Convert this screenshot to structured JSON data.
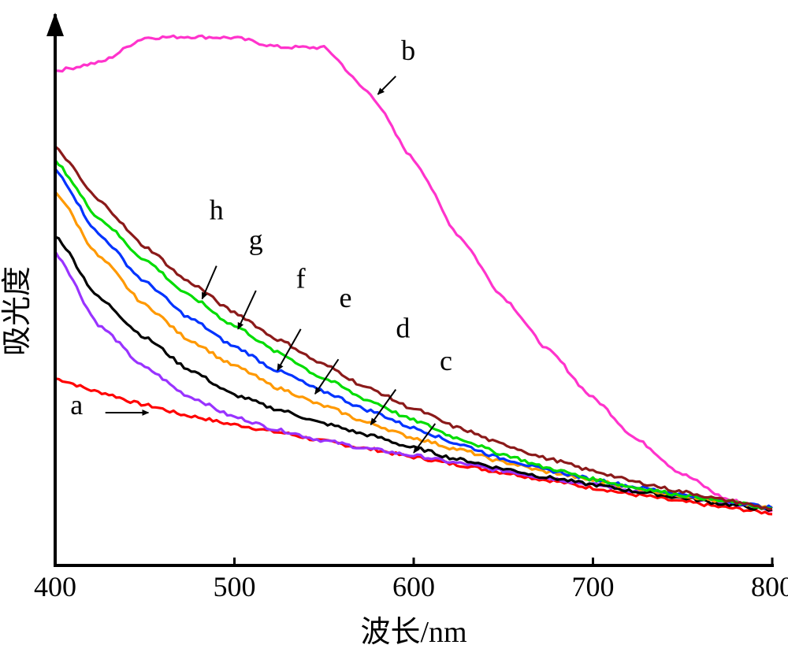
{
  "chart_data": {
    "type": "line",
    "xlabel": "波长/nm",
    "ylabel": "吸光度",
    "xlim": [
      400,
      800
    ],
    "ylim": [
      0,
      1
    ],
    "x_ticks": [
      "400",
      "500",
      "600",
      "700",
      "800"
    ],
    "y_ticks_shown": false,
    "grid": false,
    "legend": "none",
    "x": [
      400,
      425,
      450,
      475,
      500,
      525,
      550,
      575,
      600,
      625,
      650,
      675,
      700,
      725,
      750,
      775,
      800
    ],
    "series": [
      {
        "name": "a",
        "color": "#ff0000",
        "values": [
          0.34,
          0.315,
          0.292,
          0.272,
          0.256,
          0.242,
          0.226,
          0.212,
          0.197,
          0.183,
          0.169,
          0.155,
          0.141,
          0.128,
          0.116,
          0.105,
          0.095
        ],
        "arrow_from": [
          428,
          0.278
        ],
        "arrow_to": [
          452,
          0.278
        ],
        "label_at": [
          412,
          0.275
        ]
      },
      {
        "name": "b",
        "color": "#ff33cc",
        "values": [
          0.9,
          0.915,
          0.96,
          0.962,
          0.96,
          0.943,
          0.942,
          0.86,
          0.738,
          0.6,
          0.488,
          0.392,
          0.305,
          0.228,
          0.166,
          0.12,
          0.1
        ],
        "arrow_from": [
          590,
          0.89
        ],
        "arrow_to": [
          580,
          0.857
        ],
        "label_at": [
          597,
          0.92
        ]
      },
      {
        "name": "c",
        "color": "#9933ff",
        "values": [
          0.57,
          0.435,
          0.36,
          0.307,
          0.27,
          0.246,
          0.227,
          0.212,
          0.2,
          0.186,
          0.172,
          0.159,
          0.147,
          0.135,
          0.124,
          0.113,
          0.102
        ],
        "arrow_from": [
          612,
          0.258
        ],
        "arrow_to": [
          600,
          0.205
        ],
        "label_at": [
          618,
          0.355
        ]
      },
      {
        "name": "d",
        "color": "#000000",
        "values": [
          0.6,
          0.485,
          0.415,
          0.356,
          0.31,
          0.283,
          0.258,
          0.237,
          0.214,
          0.193,
          0.176,
          0.16,
          0.147,
          0.134,
          0.123,
          0.111,
          0.1
        ],
        "arrow_from": [
          590,
          0.32
        ],
        "arrow_to": [
          576,
          0.256
        ],
        "label_at": [
          594,
          0.415
        ]
      },
      {
        "name": "e",
        "color": "#ff9900",
        "values": [
          0.68,
          0.56,
          0.474,
          0.41,
          0.363,
          0.322,
          0.29,
          0.259,
          0.232,
          0.211,
          0.188,
          0.17,
          0.155,
          0.14,
          0.127,
          0.115,
          0.105
        ],
        "arrow_from": [
          558,
          0.375
        ],
        "arrow_to": [
          545,
          0.312
        ],
        "label_at": [
          562,
          0.47
        ]
      },
      {
        "name": "f",
        "color": "#0033ff",
        "values": [
          0.72,
          0.6,
          0.516,
          0.45,
          0.398,
          0.353,
          0.316,
          0.282,
          0.25,
          0.221,
          0.194,
          0.173,
          0.157,
          0.142,
          0.129,
          0.117,
          0.105
        ],
        "arrow_from": [
          537,
          0.43
        ],
        "arrow_to": [
          524,
          0.355
        ],
        "label_at": [
          537,
          0.505
        ]
      },
      {
        "name": "g",
        "color": "#00dd00",
        "values": [
          0.735,
          0.63,
          0.556,
          0.49,
          0.436,
          0.386,
          0.34,
          0.3,
          0.264,
          0.231,
          0.202,
          0.177,
          0.157,
          0.141,
          0.128,
          0.116,
          0.103
        ],
        "arrow_from": [
          512,
          0.5
        ],
        "arrow_to": [
          502,
          0.43
        ],
        "label_at": [
          512,
          0.575
        ]
      },
      {
        "name": "h",
        "color": "#8b1a1a",
        "values": [
          0.76,
          0.662,
          0.58,
          0.515,
          0.46,
          0.41,
          0.365,
          0.322,
          0.285,
          0.25,
          0.22,
          0.194,
          0.172,
          0.151,
          0.134,
          0.118,
          0.103
        ],
        "arrow_from": [
          490,
          0.545
        ],
        "arrow_to": [
          482,
          0.485
        ],
        "label_at": [
          490,
          0.63
        ]
      }
    ]
  }
}
